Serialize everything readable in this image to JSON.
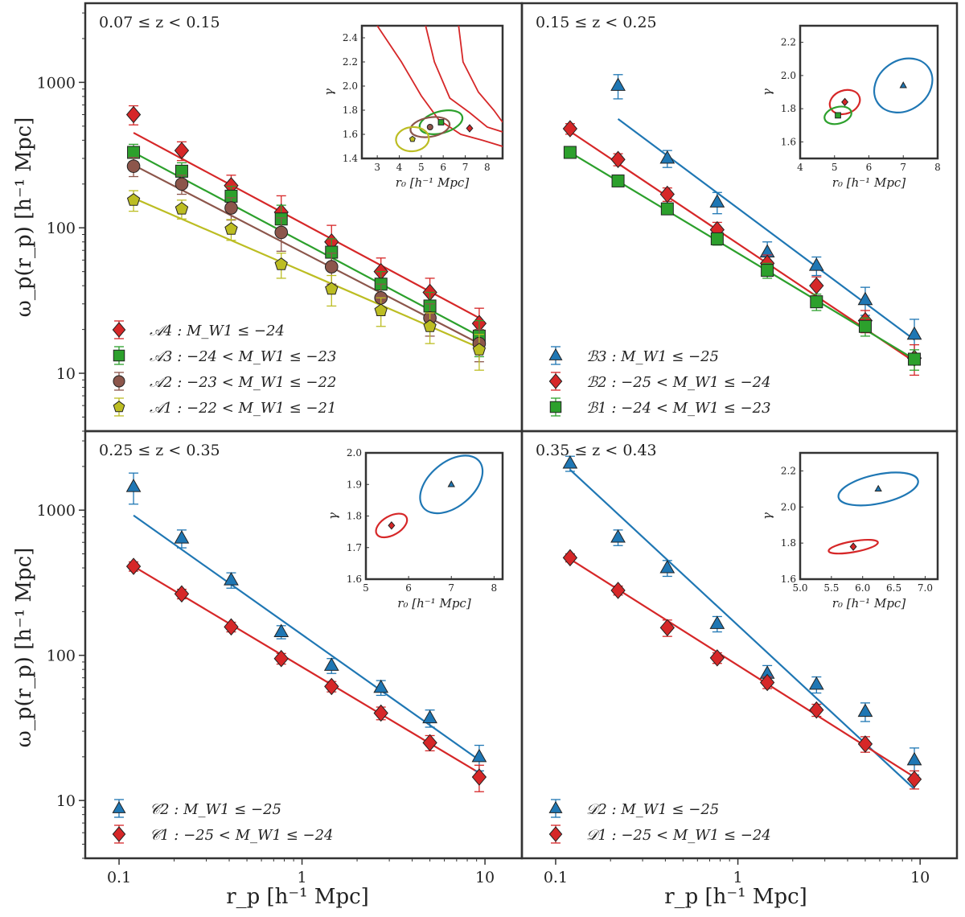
{
  "figure": {
    "xlabel": "r_p  [h⁻¹ Mpc]",
    "ylabel": "ω_p(r_p)  [h⁻¹ Mpc]",
    "x_ticks": [
      {
        "v": 0.1,
        "label": "0.1"
      },
      {
        "v": 1,
        "label": "1"
      },
      {
        "v": 10,
        "label": "10"
      }
    ],
    "y_ticks": [
      {
        "v": 10,
        "label": "10"
      },
      {
        "v": 100,
        "label": "100"
      },
      {
        "v": 1000,
        "label": "1000"
      }
    ],
    "inset_xlabel": "r₀  [h⁻¹ Mpc]",
    "inset_ylabel": "γ"
  },
  "chart_data": [
    {
      "type": "scatter",
      "title": "0.07 ≤ z < 0.15",
      "xscale": "log",
      "yscale": "log",
      "xlim": [
        0.08,
        13
      ],
      "ylim": [
        4,
        3500
      ],
      "x": [
        0.12,
        0.22,
        0.41,
        0.77,
        1.45,
        2.7,
        5.0,
        9.3
      ],
      "series": [
        {
          "name": "𝒜4 : M_W1 ≤ −24",
          "color": "#d62728",
          "marker": "diamond",
          "values": [
            600,
            340,
            195,
            128,
            80,
            50,
            36,
            22
          ],
          "errors": [
            90,
            50,
            35,
            38,
            24,
            12,
            9,
            6
          ],
          "fit": {
            "r0": 7.2,
            "gamma": 1.65,
            "y0": 450,
            "y1": 24
          },
          "inset": {
            "cx": 7.2,
            "cy": 1.65
          }
        },
        {
          "name": "𝒜3 : −24 < M_W1 ≤ −23",
          "color": "#2ca02c",
          "marker": "square",
          "values": [
            330,
            245,
            165,
            115,
            68,
            41,
            29,
            18
          ],
          "errors": [
            45,
            35,
            28,
            28,
            16,
            9,
            7,
            5
          ],
          "fit": {
            "r0": 5.9,
            "gamma": 1.7,
            "y0": 330,
            "y1": 18
          },
          "inset": {
            "cx": 5.9,
            "cy": 1.7,
            "rx": 1.0,
            "ry": 0.09,
            "angle": -15
          }
        },
        {
          "name": "𝒜2 : −23 < M_W1 ≤ −22",
          "color": "#8c564b",
          "marker": "circle",
          "values": [
            265,
            200,
            137,
            93,
            54,
            33,
            24,
            16
          ],
          "errors": [
            40,
            30,
            24,
            24,
            13,
            8,
            6,
            4
          ],
          "fit": {
            "r0": 5.4,
            "gamma": 1.66,
            "y0": 270,
            "y1": 16
          },
          "inset": {
            "cx": 5.4,
            "cy": 1.66,
            "rx": 0.9,
            "ry": 0.08,
            "angle": -10
          }
        },
        {
          "name": "𝒜1 : −22 < M_W1 ≤ −21",
          "color": "#bcbd22",
          "marker": "pentagon",
          "values": [
            155,
            135,
            98,
            56,
            38,
            27,
            21,
            14.5
          ],
          "errors": [
            25,
            20,
            16,
            11,
            9,
            6,
            5,
            4
          ],
          "fit": {
            "r0": 4.6,
            "gamma": 1.56,
            "y0": 160,
            "y1": 15
          },
          "inset": {
            "cx": 4.6,
            "cy": 1.56,
            "rx": 0.75,
            "ry": 0.1,
            "angle": -5
          }
        }
      ],
      "inset": {
        "xlim": [
          2.3,
          8.7
        ],
        "ylim": [
          1.4,
          2.5
        ],
        "xticks": [
          3,
          4,
          5,
          6,
          7,
          8
        ],
        "yticks": [
          1.4,
          1.6,
          1.8,
          2.0,
          2.2,
          2.4
        ]
      }
    },
    {
      "type": "scatter",
      "title": "0.15 ≤ z < 0.25",
      "xscale": "log",
      "yscale": "log",
      "xlim": [
        0.08,
        13
      ],
      "ylim": [
        4,
        3500
      ],
      "x": [
        0.12,
        0.22,
        0.41,
        0.77,
        1.45,
        2.7,
        5.0,
        9.3
      ],
      "series": [
        {
          "name": "ℬ3 : M_W1 ≤ −25",
          "color": "#1f77b4",
          "marker": "triangle",
          "values": [
            950,
            300,
            150,
            68,
            55,
            32,
            18.5
          ],
          "x_override": [
            0.22,
            0.41,
            0.77,
            1.45,
            2.7,
            5.0,
            9.3
          ],
          "errors": [
            180,
            40,
            25,
            12,
            8,
            7,
            5
          ],
          "fit": {
            "r0": 7.0,
            "gamma": 1.94,
            "x0": 0.22,
            "y0": 560,
            "y1": 17
          },
          "inset": {
            "cx": 7.0,
            "cy": 1.94,
            "rx": 0.9,
            "ry": 0.15,
            "angle": -35
          }
        },
        {
          "name": "ℬ2 : −25 < M_W1 ≤ −24",
          "color": "#d62728",
          "marker": "diamond",
          "values": [
            480,
            295,
            170,
            97,
            57,
            40,
            23,
            12.7
          ],
          "errors": [
            40,
            28,
            18,
            12,
            8,
            6,
            4,
            3
          ],
          "fit": {
            "r0": 5.3,
            "gamma": 1.84,
            "y0": 460,
            "y1": 12
          },
          "inset": {
            "cx": 5.3,
            "cy": 1.84,
            "rx": 0.45,
            "ry": 0.07,
            "angle": -20
          }
        },
        {
          "name": "ℬ1 : −24 < M_W1 ≤ −23",
          "color": "#2ca02c",
          "marker": "square",
          "values": [
            330,
            210,
            135,
            84,
            51,
            31,
            21,
            12.5
          ],
          "errors": [
            25,
            16,
            11,
            8,
            6,
            4,
            3,
            2
          ],
          "fit": {
            "r0": 5.1,
            "gamma": 1.76,
            "y0": 330,
            "y1": 12.5
          },
          "inset": {
            "cx": 5.1,
            "cy": 1.76,
            "rx": 0.4,
            "ry": 0.05,
            "angle": -15
          }
        }
      ],
      "inset": {
        "xlim": [
          4,
          8
        ],
        "ylim": [
          1.5,
          2.3
        ],
        "xticks": [
          4,
          5,
          6,
          7,
          8
        ],
        "yticks": [
          1.6,
          1.8,
          2.0,
          2.2
        ]
      }
    },
    {
      "type": "scatter",
      "title": "0.25 ≤ z < 0.35",
      "xscale": "log",
      "yscale": "log",
      "xlim": [
        0.08,
        13
      ],
      "ylim": [
        4,
        3500
      ],
      "x": [
        0.12,
        0.22,
        0.41,
        0.77,
        1.45,
        2.7,
        5.0,
        9.3
      ],
      "series": [
        {
          "name": "𝒞2 : M_W1 ≤ −25",
          "color": "#1f77b4",
          "marker": "triangle",
          "values": [
            1450,
            640,
            330,
            145,
            85,
            60,
            37,
            20
          ],
          "errors": [
            350,
            90,
            40,
            15,
            10,
            7,
            5,
            4
          ],
          "fit": {
            "r0": 7.0,
            "gamma": 1.9,
            "y0": 920,
            "y1": 19
          },
          "inset": {
            "cx": 7.0,
            "cy": 1.9,
            "rx": 0.85,
            "ry": 0.07,
            "angle": -40
          }
        },
        {
          "name": "𝒞1 : −25 < M_W1 ≤ −24",
          "color": "#d62728",
          "marker": "diamond",
          "values": [
            410,
            265,
            157,
            95,
            61,
            40,
            25,
            14.5
          ],
          "errors": [
            30,
            20,
            12,
            8,
            5,
            4,
            3,
            3
          ],
          "fit": {
            "r0": 5.6,
            "gamma": 1.77,
            "y0": 410,
            "y1": 15.5
          },
          "inset": {
            "cx": 5.6,
            "cy": 1.77,
            "rx": 0.4,
            "ry": 0.03,
            "angle": -30
          }
        }
      ],
      "inset": {
        "xlim": [
          5,
          8.2
        ],
        "ylim": [
          1.6,
          2.0
        ],
        "xticks": [
          5,
          6,
          7,
          8
        ],
        "yticks": [
          1.6,
          1.7,
          1.8,
          1.9,
          2.0
        ]
      }
    },
    {
      "type": "scatter",
      "title": "0.35 ≤ z < 0.43",
      "xscale": "log",
      "yscale": "log",
      "xlim": [
        0.08,
        13
      ],
      "ylim": [
        4,
        3500
      ],
      "x": [
        0.12,
        0.22,
        0.41,
        0.77,
        1.45,
        2.7,
        5.0,
        9.3
      ],
      "series": [
        {
          "name": "𝒟2 : M_W1 ≤ −25",
          "color": "#1f77b4",
          "marker": "triangle",
          "values": [
            2100,
            650,
            400,
            165,
            75,
            63,
            41,
            19
          ],
          "errors": [
            250,
            80,
            50,
            20,
            10,
            8,
            6,
            4
          ],
          "fit": {
            "r0": 6.25,
            "gamma": 2.1,
            "y0": 1900,
            "y1": 12
          },
          "inset": {
            "cx": 6.25,
            "cy": 2.1,
            "rx": 0.65,
            "ry": 0.08,
            "angle": -12
          }
        },
        {
          "name": "𝒟1 : −25 < M_W1 ≤ −24",
          "color": "#d62728",
          "marker": "diamond",
          "values": [
            470,
            280,
            155,
            96,
            65,
            42,
            24.5,
            14
          ],
          "errors": [
            30,
            20,
            20,
            8,
            6,
            4,
            3,
            2
          ],
          "fit": {
            "r0": 5.85,
            "gamma": 1.78,
            "y0": 460,
            "y1": 14.5
          },
          "inset": {
            "cx": 5.85,
            "cy": 1.78,
            "rx": 0.4,
            "ry": 0.03,
            "angle": -10
          }
        }
      ],
      "inset": {
        "xlim": [
          5.0,
          7.2
        ],
        "ylim": [
          1.6,
          2.3
        ],
        "xticks": [
          5.0,
          5.5,
          6.0,
          6.5,
          7.0
        ],
        "xticklabels": [
          "5.0",
          "5.5",
          "6.0",
          "6.5",
          "7.0"
        ],
        "yticks": [
          1.6,
          1.8,
          2.0,
          2.2
        ]
      }
    }
  ]
}
